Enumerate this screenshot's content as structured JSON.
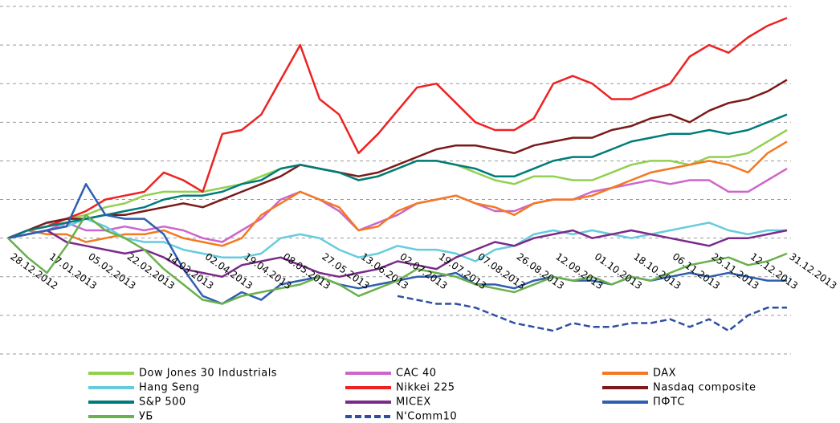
{
  "chart_data": {
    "type": "line",
    "categories": [
      "28.12.2012",
      null,
      "17.01.2013",
      null,
      "05.02.2013",
      null,
      "22.02.2013",
      null,
      "14.03.2013",
      null,
      "02.04.2013",
      null,
      "19.04.2013",
      null,
      "08.05.2013",
      null,
      "27.05.2013",
      null,
      "13.06.2013",
      null,
      "02.07.2013",
      null,
      "19.07.2013",
      null,
      "07.08.2013",
      null,
      "26.08.2013",
      null,
      "12.09.2013",
      null,
      "01.10.2013",
      null,
      "18.10.2013",
      null,
      "06.11.2013",
      null,
      "25.11.2013",
      null,
      "12.12.2013",
      null,
      "31.12.2013"
    ],
    "ylim": [
      -30,
      60
    ],
    "yticks": [
      -30,
      -20,
      -10,
      0,
      10,
      20,
      30,
      40,
      50,
      60
    ],
    "grid": true,
    "series": [
      {
        "name": "Dow Jones 30 Industrials",
        "color": "#92d050",
        "values": [
          0,
          2,
          3,
          5,
          6,
          8,
          9,
          11,
          12,
          12,
          12,
          13,
          14,
          16,
          18,
          19,
          18,
          17,
          15,
          16,
          18,
          20,
          20,
          19,
          17,
          15,
          14,
          16,
          16,
          15,
          15,
          17,
          19,
          20,
          20,
          19,
          21,
          21,
          22,
          25,
          28
        ]
      },
      {
        "name": "CAC 40",
        "color": "#cc66cc",
        "values": [
          0,
          1,
          2,
          4,
          2,
          2,
          3,
          2,
          3,
          2,
          0,
          -1,
          2,
          5,
          10,
          12,
          10,
          7,
          2,
          4,
          6,
          9,
          10,
          11,
          9,
          7,
          7,
          9,
          10,
          10,
          12,
          13,
          14,
          15,
          14,
          15,
          15,
          12,
          12,
          15,
          18
        ]
      },
      {
        "name": "DAX",
        "color": "#f47920",
        "values": [
          0,
          2,
          1,
          1,
          -1,
          0,
          1,
          1,
          2,
          0,
          -1,
          -2,
          0,
          6,
          9,
          12,
          10,
          8,
          2,
          3,
          7,
          9,
          10,
          11,
          9,
          8,
          6,
          9,
          10,
          10,
          11,
          13,
          15,
          17,
          18,
          19,
          20,
          19,
          17,
          22,
          25
        ]
      },
      {
        "name": "Hang Seng",
        "color": "#66ccdd",
        "values": [
          0,
          2,
          4,
          3,
          5,
          3,
          0,
          -1,
          -1,
          -3,
          -4,
          -5,
          -5,
          -4,
          0,
          1,
          0,
          -3,
          -5,
          -4,
          -2,
          -3,
          -3,
          -4,
          -6,
          -3,
          -2,
          1,
          2,
          1,
          2,
          1,
          0,
          1,
          2,
          3,
          4,
          2,
          1,
          2,
          2
        ]
      },
      {
        "name": "Nikkei 225",
        "color": "#ee2222",
        "values": [
          0,
          2,
          3,
          5,
          7,
          10,
          11,
          12,
          17,
          15,
          12,
          27,
          28,
          32,
          41,
          50,
          36,
          32,
          22,
          27,
          33,
          39,
          40,
          35,
          30,
          28,
          28,
          31,
          40,
          42,
          40,
          36,
          36,
          38,
          40,
          47,
          50,
          48,
          52,
          55,
          57
        ]
      },
      {
        "name": "Nasdaq composite",
        "color": "#7b1a1a",
        "values": [
          0,
          2,
          4,
          5,
          5,
          6,
          6,
          7,
          8,
          9,
          8,
          10,
          12,
          14,
          16,
          19,
          18,
          17,
          16,
          17,
          19,
          21,
          23,
          24,
          24,
          23,
          22,
          24,
          25,
          26,
          26,
          28,
          29,
          31,
          32,
          30,
          33,
          35,
          36,
          38,
          41
        ]
      },
      {
        "name": "S&P 500",
        "color": "#007b7b",
        "values": [
          0,
          2,
          3,
          4,
          5,
          6,
          7,
          8,
          10,
          11,
          11,
          12,
          14,
          15,
          18,
          19,
          18,
          17,
          15,
          16,
          18,
          20,
          20,
          19,
          18,
          16,
          16,
          18,
          20,
          21,
          21,
          23,
          25,
          26,
          27,
          27,
          28,
          27,
          28,
          30,
          32
        ]
      },
      {
        "name": "MICEX",
        "color": "#7a2a8a",
        "values": [
          0,
          1,
          2,
          -1,
          -2,
          -3,
          -4,
          -3,
          -5,
          -8,
          -9,
          -10,
          -7,
          -6,
          -5,
          -7,
          -9,
          -10,
          -9,
          -8,
          -6,
          -7,
          -8,
          -5,
          -3,
          -1,
          -2,
          0,
          1,
          2,
          0,
          1,
          2,
          1,
          0,
          -1,
          -2,
          0,
          0,
          1,
          2
        ]
      },
      {
        "name": "ПФТС",
        "color": "#2e5fb0",
        "values": [
          0,
          1,
          2,
          3,
          14,
          6,
          5,
          5,
          1,
          -8,
          -15,
          -17,
          -14,
          -16,
          -12,
          -11,
          -10,
          -12,
          -13,
          -12,
          -11,
          -10,
          -10,
          -9,
          -12,
          -12,
          -13,
          -11,
          -10,
          -11,
          -11,
          -12,
          -10,
          -11,
          -10,
          -9,
          -10,
          -9,
          -10,
          -11,
          -11
        ]
      },
      {
        "name": "УБ",
        "color": "#6ab04c",
        "values": [
          0,
          -5,
          -9,
          -2,
          6,
          2,
          0,
          -3,
          -8,
          -12,
          -16,
          -17,
          -15,
          -14,
          -13,
          -12,
          -10,
          -12,
          -15,
          -13,
          -11,
          -8,
          -9,
          -10,
          -12,
          -13,
          -14,
          -12,
          -10,
          -11,
          -10,
          -12,
          -10,
          -11,
          -9,
          -7,
          -6,
          -5,
          -7,
          -6,
          -4
        ]
      },
      {
        "name": "N'Comm10",
        "color": "#2e4fa0",
        "dashed": true,
        "values": [
          null,
          null,
          null,
          null,
          null,
          null,
          null,
          null,
          null,
          null,
          null,
          null,
          null,
          null,
          null,
          null,
          null,
          null,
          null,
          null,
          -15,
          -16,
          -17,
          -17,
          -18,
          -20,
          -22,
          -23,
          -24,
          -22,
          -23,
          -23,
          -22,
          -22,
          -21,
          -23,
          -21,
          -24,
          -20,
          -18,
          -18
        ]
      }
    ]
  }
}
